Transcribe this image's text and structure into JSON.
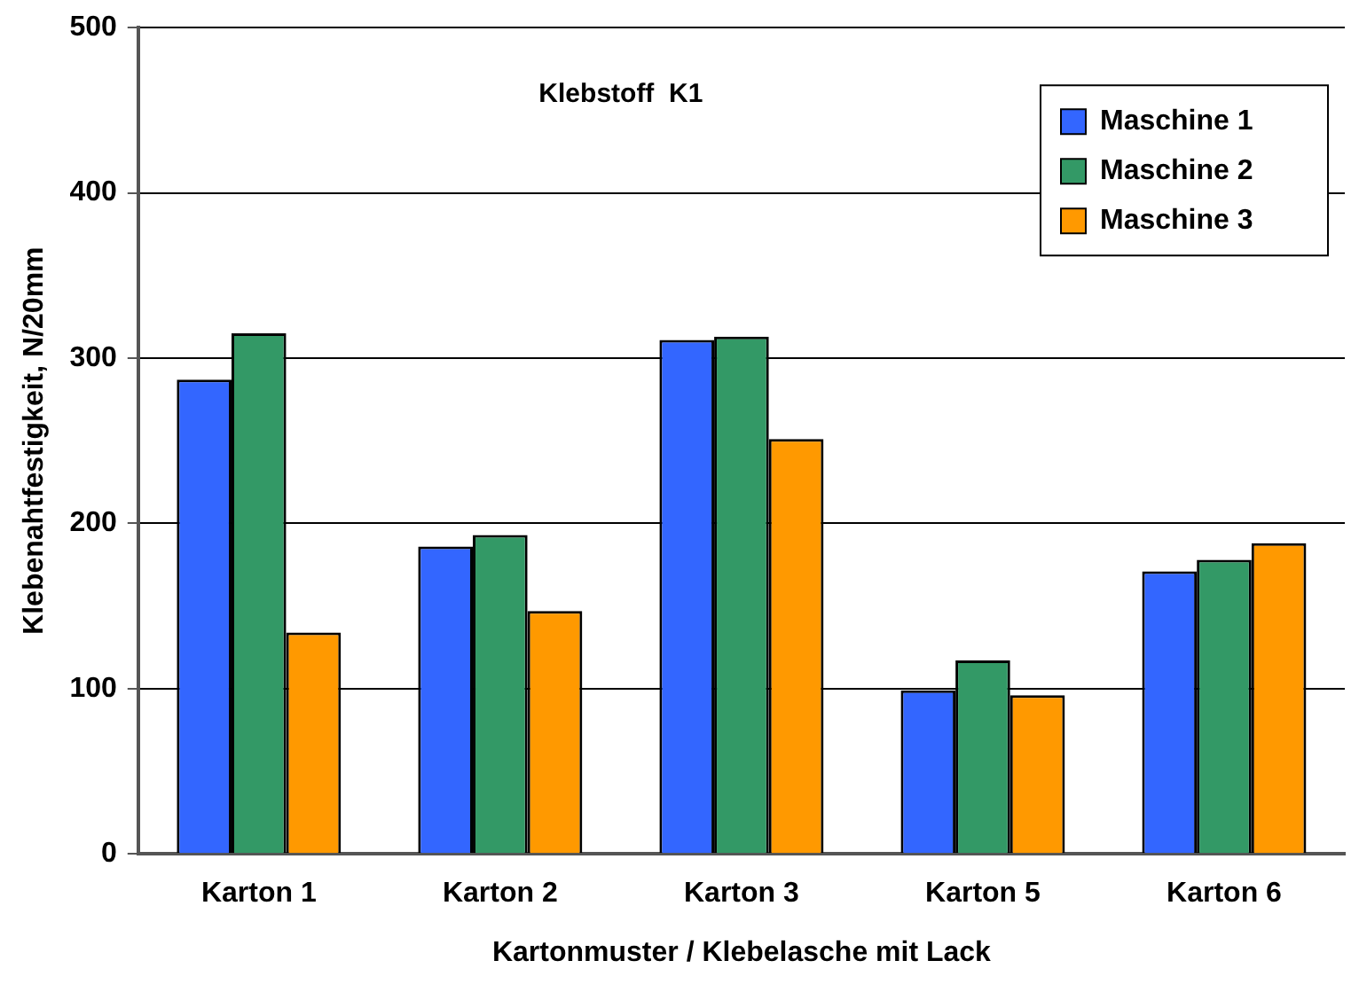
{
  "chart_data": {
    "type": "bar",
    "annotations": [
      "Klebstoff  K1"
    ],
    "xlabel": "Kartonmuster / Klebelasche mit Lack",
    "ylabel": "Klebenahtfestigkeit, N/20mm",
    "categories": [
      "Karton 1",
      "Karton 2",
      "Karton 3",
      "Karton 5",
      "Karton 6"
    ],
    "series": [
      {
        "name": "Maschine 1",
        "color": "#3366ff",
        "values": [
          287,
          186,
          311,
          99,
          171
        ]
      },
      {
        "name": "Maschine 2",
        "color": "#339966",
        "values": [
          315,
          193,
          313,
          117,
          178
        ]
      },
      {
        "name": "Maschine 3",
        "color": "#ff9900",
        "values": [
          134,
          147,
          251,
          96,
          188
        ]
      }
    ],
    "ylim": [
      0,
      500
    ],
    "yticks": [
      0,
      100,
      200,
      300,
      400,
      500
    ],
    "grid": "y",
    "legend": "top right"
  }
}
